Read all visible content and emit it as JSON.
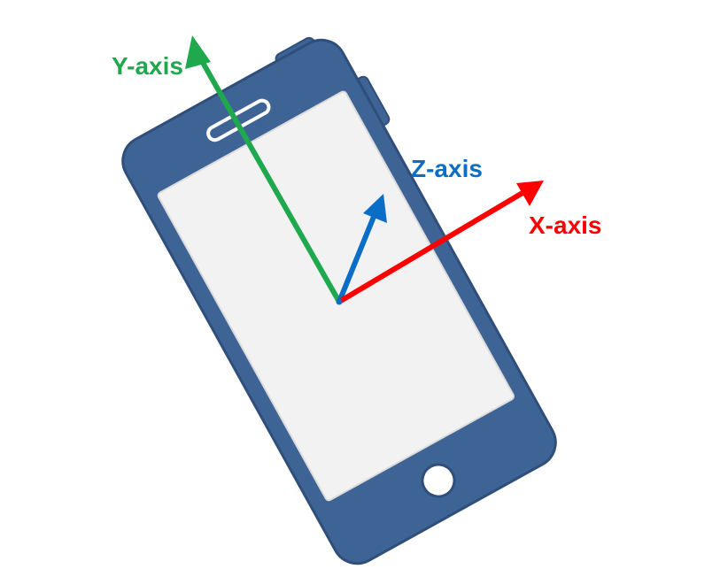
{
  "axes": {
    "x": {
      "label": "X-axis",
      "color": "#ff0000"
    },
    "y": {
      "label": "Y-axis",
      "color": "#1fa84d"
    },
    "z": {
      "label": "Z-axis",
      "color": "#0a6ec7"
    }
  },
  "phone": {
    "body_color": "#3e6496",
    "body_edge_color": "#2f4f7a",
    "screen_color": "#f2f2f2",
    "screen_edge_color": "#e0e0e0",
    "home_button_color": "#ffffff"
  }
}
